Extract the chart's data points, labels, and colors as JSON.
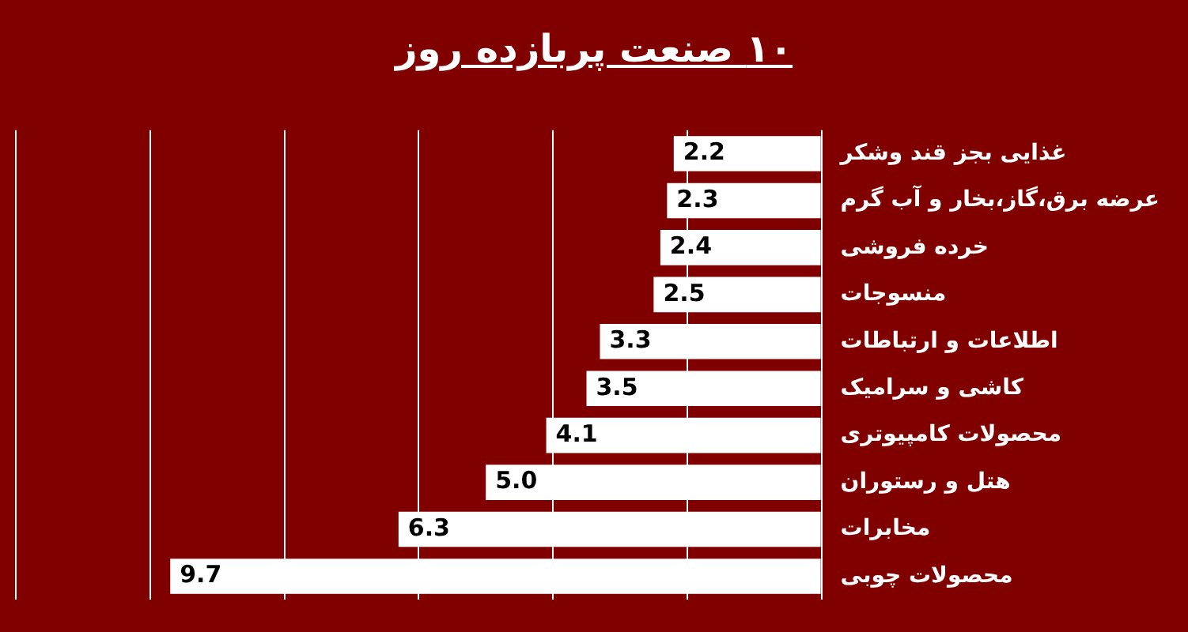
{
  "chart_data": {
    "type": "bar",
    "orientation": "horizontal",
    "title": "۱۰ صنعت پربازده روز",
    "categories": [
      "غذایی بجز قند وشکر",
      "عرضه برق،گاز،بخار و آب گرم",
      "خرده فروشی",
      "منسوجات",
      "اطلاعات و ارتباطات",
      "کاشی و سرامیک",
      "محصولات کامپیوتری",
      "هتل و رستوران",
      "مخابرات",
      "محصولات چوبی"
    ],
    "values": [
      2.2,
      2.3,
      2.4,
      2.5,
      3.3,
      3.5,
      4.1,
      5.0,
      6.3,
      9.7
    ],
    "value_labels": [
      "2.2",
      "2.3",
      "2.4",
      "2.5",
      "3.3",
      "3.5",
      "4.1",
      "5.0",
      "6.3",
      "9.7"
    ],
    "color": "#ffffff",
    "xlim": [
      12,
      0
    ],
    "xticks": [
      {
        "value": 0,
        "label": null
      },
      {
        "value": 2,
        "label": null
      },
      {
        "value": 4,
        "label": null
      },
      {
        "value": 6,
        "label": null
      },
      {
        "value": 8,
        "label": null
      },
      {
        "value": 10,
        "label": null
      },
      {
        "value": 12,
        "label": null
      }
    ],
    "grid": "x",
    "tick_labels": "y"
  }
}
